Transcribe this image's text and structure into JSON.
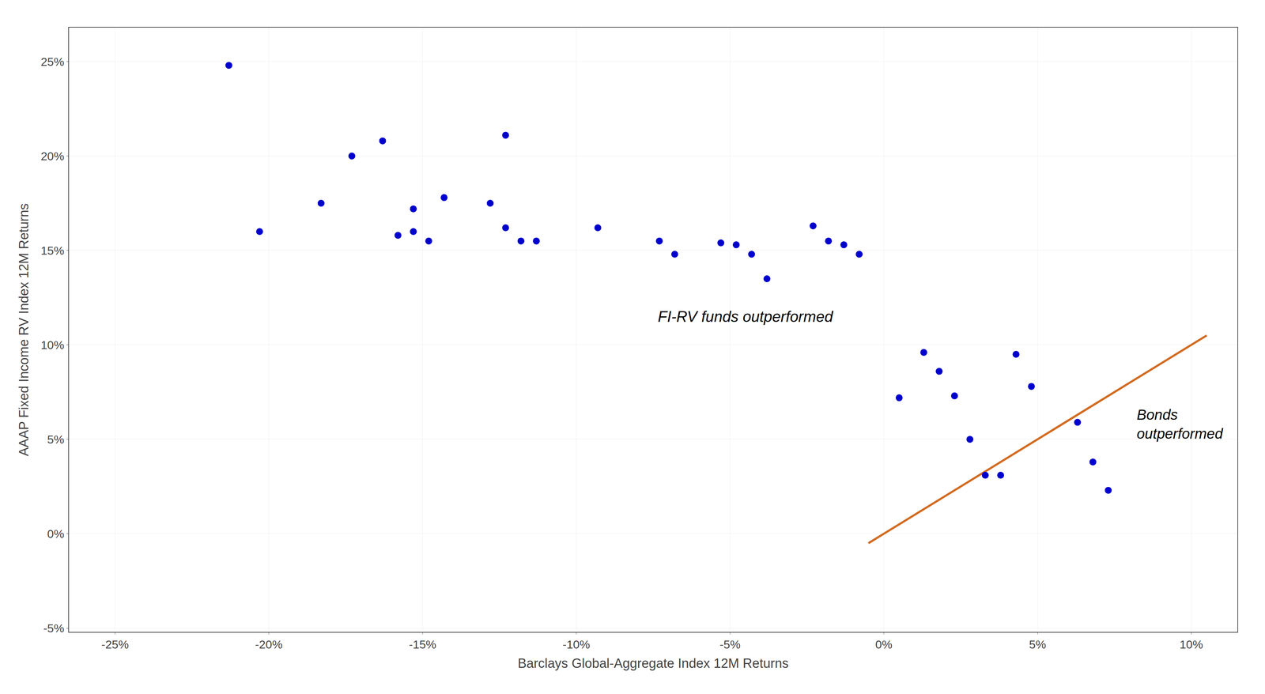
{
  "chart_data": {
    "type": "scatter",
    "xlabel": "Barclays Global-Aggregate Index 12M Returns",
    "ylabel": "AAAP Fixed Income RV Index 12M Returns",
    "series": [
      {
        "type": "scatter",
        "marker": "circle",
        "color": "#0000CD",
        "x": [
          -0.213,
          -0.203,
          -0.183,
          -0.173,
          -0.163,
          -0.158,
          -0.153,
          -0.153,
          -0.148,
          -0.143,
          -0.128,
          -0.123,
          -0.118,
          -0.123,
          -0.113,
          -0.093,
          -0.073,
          -0.068,
          -0.053,
          -0.048,
          -0.043,
          -0.038,
          -0.023,
          -0.018,
          -0.013,
          -0.008,
          0.005,
          0.013,
          0.018,
          0.023,
          0.028,
          0.033,
          0.038,
          0.043,
          0.048,
          0.063,
          0.068,
          0.073
        ],
        "values": [
          0.248,
          0.16,
          0.175,
          0.2,
          0.208,
          0.158,
          0.172,
          0.16,
          0.155,
          0.178,
          0.175,
          0.162,
          0.155,
          0.211,
          0.155,
          0.162,
          0.155,
          0.148,
          0.154,
          0.153,
          0.148,
          0.135,
          0.163,
          0.155,
          0.153,
          0.148,
          0.072,
          0.096,
          0.086,
          0.073,
          0.05,
          0.031,
          0.031,
          0.095,
          0.078,
          0.059,
          0.038,
          0.023
        ]
      },
      {
        "type": "line",
        "line_style": "solid",
        "color": "#D2691E",
        "x": [
          -0.005,
          0.105
        ],
        "values": [
          -0.005,
          0.105
        ]
      }
    ],
    "xlim": [
      -0.265,
      0.115
    ],
    "ylim": [
      -0.052,
      0.268
    ],
    "xticks": [
      {
        "value": -0.25,
        "label": "-25%"
      },
      {
        "value": -0.2,
        "label": "-20%"
      },
      {
        "value": -0.15,
        "label": "-15%"
      },
      {
        "value": -0.1,
        "label": "-10%"
      },
      {
        "value": -0.05,
        "label": "-5%"
      },
      {
        "value": 0.0,
        "label": "0%"
      },
      {
        "value": 0.05,
        "label": "5%"
      },
      {
        "value": 0.1,
        "label": "10%"
      }
    ],
    "yticks": [
      {
        "value": -0.05,
        "label": "-5%"
      },
      {
        "value": 0.0,
        "label": "0%"
      },
      {
        "value": 0.05,
        "label": "5%"
      },
      {
        "value": 0.1,
        "label": "10%"
      },
      {
        "value": 0.15,
        "label": "15%"
      },
      {
        "value": 0.2,
        "label": "20%"
      },
      {
        "value": 0.25,
        "label": "25%"
      }
    ],
    "grid": true,
    "annotations": [
      {
        "text": "FI-RV funds outperformed",
        "x": -0.045,
        "y": 0.115
      },
      {
        "text": "Bonds\noutperformed",
        "x": 0.082,
        "y": 0.058
      }
    ]
  }
}
